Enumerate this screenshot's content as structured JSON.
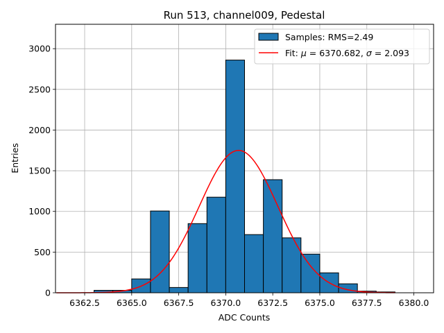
{
  "chart_data": {
    "type": "bar",
    "title": "Run 513, channel009, Pedestal",
    "xlabel": "ADC Counts",
    "ylabel": "Entries",
    "xlim": [
      6360.95,
      6381.05
    ],
    "ylim": [
      0,
      3300
    ],
    "grid": true,
    "legend_position": "top-right",
    "xticks": [
      6362.5,
      6365.0,
      6367.5,
      6370.0,
      6372.5,
      6375.0,
      6377.5,
      6380.0
    ],
    "xtick_labels": [
      "6362.5",
      "6365.0",
      "6367.5",
      "6370.0",
      "6372.5",
      "6375.0",
      "6377.5",
      "6380.0"
    ],
    "yticks": [
      0,
      500,
      1000,
      1500,
      2000,
      2500,
      3000
    ],
    "ytick_labels": [
      "0",
      "500",
      "1000",
      "1500",
      "2000",
      "2500",
      "3000"
    ],
    "histogram": {
      "name": "Samples: RMS=2.49",
      "color": "#1f77b4",
      "edge_color": "#000000",
      "bin_edges": [
        6361,
        6362,
        6363,
        6364,
        6365,
        6366,
        6367,
        6368,
        6369,
        6370,
        6371,
        6372,
        6373,
        6374,
        6375,
        6376,
        6377,
        6378,
        6379,
        6380,
        6381
      ],
      "counts": [
        0,
        0,
        30,
        30,
        170,
        1005,
        65,
        850,
        1175,
        2860,
        715,
        1390,
        675,
        475,
        245,
        110,
        20,
        10,
        0,
        0
      ]
    },
    "fit": {
      "name": "Fit: μ = 6370.682, σ = 2.093",
      "mu_text": "6370.682",
      "sigma_text": "2.093",
      "color": "#ff0000",
      "mu": 6370.682,
      "sigma": 2.093,
      "amplitude": 1750,
      "x_range": [
        6361,
        6379
      ]
    }
  }
}
